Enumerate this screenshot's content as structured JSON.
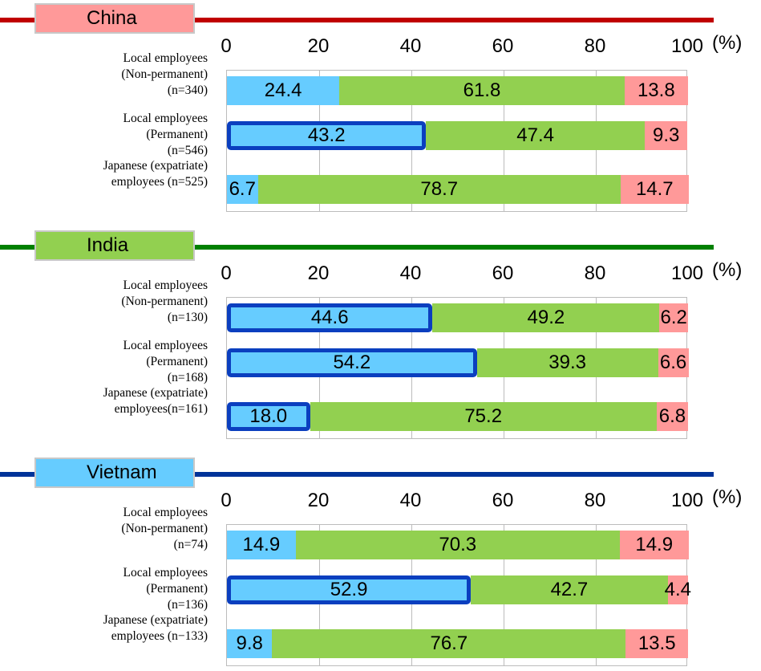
{
  "chart_data": {
    "type": "bar",
    "orientation": "horizontal",
    "stacked": true,
    "unit": "(%)",
    "xlim": [
      0,
      100
    ],
    "ticks": [
      "0",
      "20",
      "40",
      "60",
      "80",
      "100"
    ],
    "segment_colors": [
      "#66ccff",
      "#92d050",
      "#ff9999"
    ],
    "highlight_color": "#0b3fbf",
    "panels": [
      {
        "region": "China",
        "header_color": "#c00000",
        "tab_color": "#ff9999",
        "rows": [
          {
            "label_lines": [
              "Local employees",
              "(Non-permanent)",
              "(n=340)"
            ],
            "values": [
              24.4,
              61.8,
              13.8
            ],
            "value_labels": [
              "24.4",
              "61.8",
              "13.8"
            ],
            "highlight": false
          },
          {
            "label_lines": [
              "Local employees",
              "(Permanent)",
              "(n=546)"
            ],
            "values": [
              43.2,
              47.4,
              9.3
            ],
            "value_labels": [
              "43.2",
              "47.4",
              "9.3"
            ],
            "highlight": true
          },
          {
            "label_lines": [
              "Japanese (expatriate)",
              "employees (n=525)"
            ],
            "values": [
              6.7,
              78.7,
              14.7
            ],
            "value_labels": [
              "6.7",
              "78.7",
              "14.7"
            ],
            "highlight": false
          }
        ]
      },
      {
        "region": "India",
        "header_color": "#008000",
        "tab_color": "#92d050",
        "rows": [
          {
            "label_lines": [
              "Local employees",
              "(Non-permanent)",
              "(n=130)"
            ],
            "values": [
              44.6,
              49.2,
              6.2
            ],
            "value_labels": [
              "44.6",
              "49.2",
              "6.2"
            ],
            "highlight": true
          },
          {
            "label_lines": [
              "Local employees",
              "(Permanent)",
              "(n=168)"
            ],
            "values": [
              54.2,
              39.3,
              6.6
            ],
            "value_labels": [
              "54.2",
              "39.3",
              "6.6"
            ],
            "highlight": true
          },
          {
            "label_lines": [
              "Japanese (expatriate)",
              "employees(n=161)"
            ],
            "values": [
              18.0,
              75.2,
              6.8
            ],
            "value_labels": [
              "18.0",
              "75.2",
              "6.8"
            ],
            "highlight": true
          }
        ]
      },
      {
        "region": "Vietnam",
        "header_color": "#003399",
        "tab_color": "#66ccff",
        "rows": [
          {
            "label_lines": [
              "Local employees",
              "(Non-permanent)",
              "(n=74)"
            ],
            "values": [
              14.9,
              70.3,
              14.9
            ],
            "value_labels": [
              "14.9",
              "70.3",
              "14.9"
            ],
            "highlight": false
          },
          {
            "label_lines": [
              "Local employees",
              "(Permanent)",
              "(n=136)"
            ],
            "values": [
              52.9,
              42.7,
              4.4
            ],
            "value_labels": [
              "52.9",
              "42.7",
              "4.4"
            ],
            "highlight": true
          },
          {
            "label_lines": [
              "Japanese (expatriate)",
              "employees (n−133)"
            ],
            "values": [
              9.8,
              76.7,
              13.5
            ],
            "value_labels": [
              "9.8",
              "76.7",
              "13.5"
            ],
            "highlight": false
          }
        ]
      }
    ]
  }
}
